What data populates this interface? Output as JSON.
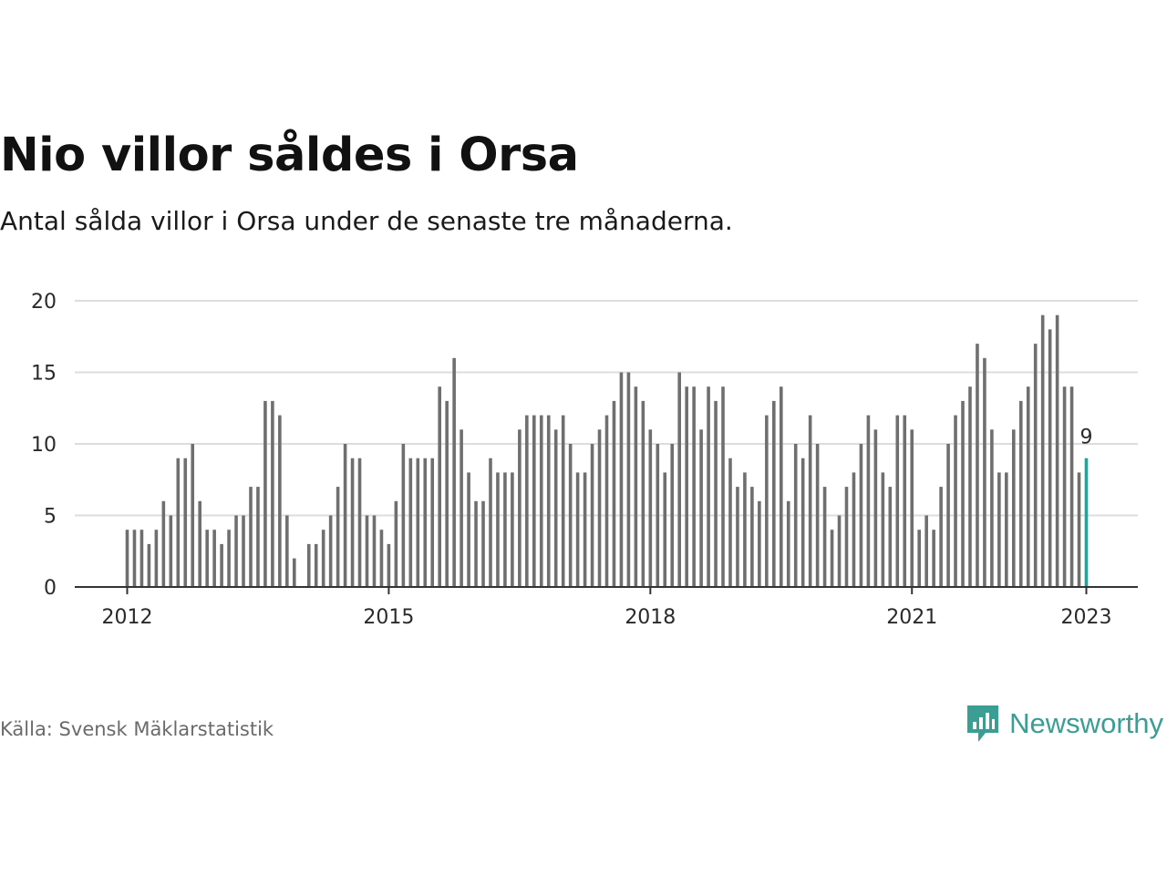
{
  "title": "Nio villor såldes i Orsa",
  "subtitle": "Antal sålda villor i Orsa under de senaste tre månaderna.",
  "source": "Källa: Svensk Mäklarstatistik",
  "logo": {
    "text": "Newsworthy",
    "icon": "newsworthy-chart-icon",
    "color": "#3a9e94"
  },
  "colors": {
    "bar": "#6f6f6f",
    "highlight": "#2aa198",
    "grid": "#dddddd",
    "axis": "#333333"
  },
  "chart_data": {
    "type": "bar",
    "x_unit": "month",
    "x_start": "2012-01",
    "x_end": "2023-01",
    "values": [
      4,
      4,
      4,
      3,
      4,
      6,
      5,
      9,
      9,
      10,
      6,
      4,
      4,
      3,
      4,
      5,
      5,
      7,
      7,
      13,
      13,
      12,
      5,
      2,
      null,
      3,
      3,
      4,
      5,
      7,
      10,
      9,
      9,
      5,
      5,
      4,
      3,
      6,
      10,
      9,
      9,
      9,
      9,
      14,
      13,
      16,
      11,
      8,
      6,
      6,
      9,
      8,
      8,
      8,
      11,
      12,
      12,
      12,
      12,
      11,
      12,
      10,
      8,
      8,
      10,
      11,
      12,
      13,
      15,
      15,
      14,
      13,
      11,
      10,
      8,
      10,
      15,
      14,
      14,
      11,
      14,
      13,
      14,
      9,
      7,
      8,
      7,
      6,
      12,
      13,
      14,
      6,
      10,
      9,
      12,
      10,
      7,
      4,
      5,
      7,
      8,
      10,
      12,
      11,
      8,
      7,
      12,
      12,
      11,
      4,
      5,
      4,
      7,
      10,
      12,
      13,
      14,
      17,
      16,
      11,
      8,
      8,
      11,
      13,
      14,
      17,
      19,
      18,
      19,
      14,
      14,
      8,
      9
    ],
    "highlight_last": true,
    "highlight_label": "9",
    "ylim": [
      0,
      20
    ],
    "yticks": [
      0,
      5,
      10,
      15,
      20
    ],
    "xticks": [
      "2012",
      "2015",
      "2018",
      "2021",
      "2023"
    ],
    "grid": true
  }
}
